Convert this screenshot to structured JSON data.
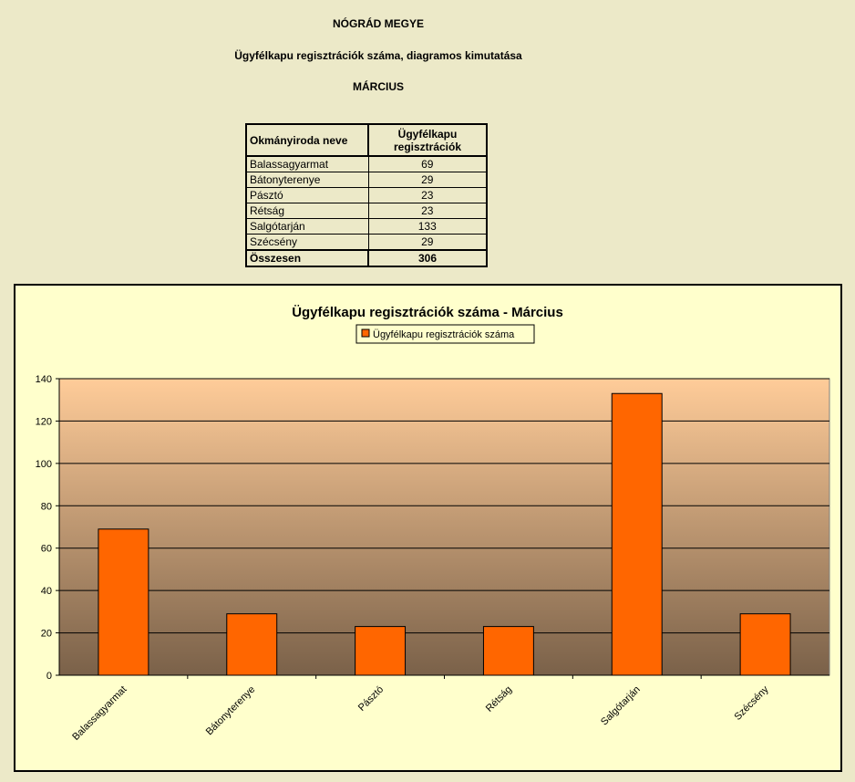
{
  "header": {
    "county": "NÓGRÁD MEGYE",
    "subtitle": "Ügyfélkapu regisztrációk száma, diagramos kimutatása",
    "month": "MÁRCIUS"
  },
  "table": {
    "col1": "Okmányiroda neve",
    "col2_line1": "Ügyfélkapu",
    "col2_line2": "regisztrációk",
    "rows": [
      {
        "name": "Balassagyarmat",
        "value": "69"
      },
      {
        "name": "Bátonyterenye",
        "value": "29"
      },
      {
        "name": "Pásztó",
        "value": "23"
      },
      {
        "name": "Rétság",
        "value": "23"
      },
      {
        "name": "Salgótarján",
        "value": "133"
      },
      {
        "name": "Szécsény",
        "value": "29"
      }
    ],
    "total_label": "Összesen",
    "total_value": "306"
  },
  "chart_data": {
    "type": "bar",
    "title": "Ügyfélkapu regisztrációk száma - Március",
    "categories": [
      "Balassagyarmat",
      "Bátonyterenye",
      "Pásztó",
      "Rétság",
      "Salgótarján",
      "Szécsény"
    ],
    "series": [
      {
        "name": "Ügyfélkapu regisztrációk száma",
        "values": [
          69,
          29,
          23,
          23,
          133,
          29
        ]
      }
    ],
    "ylim": [
      0,
      140
    ],
    "yticks": [
      0,
      20,
      40,
      60,
      80,
      100,
      120,
      140
    ],
    "grid": true,
    "legend": "top-center",
    "colors": {
      "bar": "#ff6600",
      "plot_top": "#ffcc99",
      "plot_bottom": "#7a6149",
      "frame_bg": "#ffffcc"
    }
  }
}
